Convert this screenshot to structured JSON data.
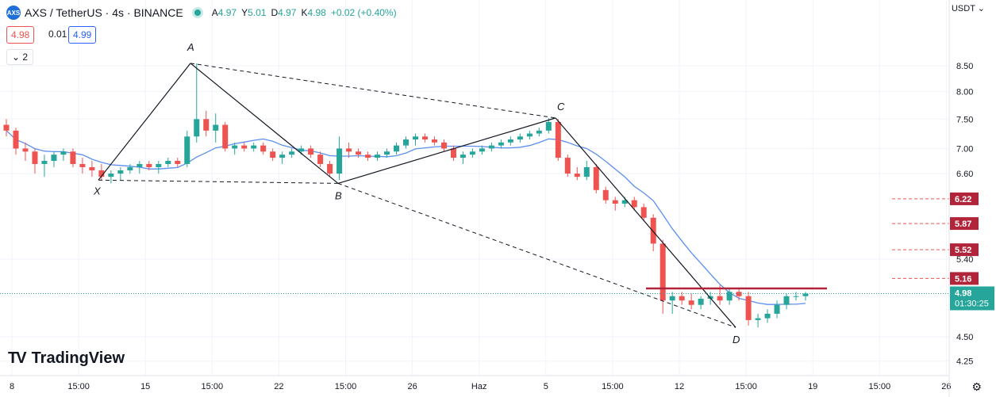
{
  "header": {
    "logo_text": "AXS",
    "symbol": "AXS / TetherUS · 4s · BINANCE",
    "ohlc": [
      {
        "k": "A",
        "v": "4.97"
      },
      {
        "k": "Y",
        "v": "5.01"
      },
      {
        "k": "D",
        "v": "4.97"
      },
      {
        "k": "K",
        "v": "4.98"
      }
    ],
    "change": "+0.02 (+0.40%)"
  },
  "trade": {
    "ask": "4.98",
    "spread": "0.01",
    "bid": "4.99"
  },
  "indicator_toggle": "⌄ 2",
  "currency": "USDT ⌄",
  "branding": {
    "mark": "TV",
    "text": "TradingView"
  },
  "colors": {
    "up": "#26a69a",
    "down": "#ef5350",
    "ma": "#5b8ff0",
    "pattern": "#131722",
    "resistance": "#b2243a",
    "axis_bg": "#ffffff"
  },
  "chart_data": {
    "type": "candlestick",
    "y_scale": "log",
    "price_ticks": [
      "8.50",
      "8.00",
      "7.50",
      "7.00",
      "6.60",
      "5.40",
      "4.50",
      "4.25"
    ],
    "time_ticks": [
      "8",
      "15:00",
      "15",
      "15:00",
      "22",
      "15:00",
      "26",
      "Haz",
      "5",
      "15:00",
      "12",
      "15:00",
      "19",
      "15:00",
      "26"
    ],
    "pattern_points": [
      {
        "label": "X",
        "date": "May 11",
        "price": 6.5
      },
      {
        "label": "A",
        "date": "May 14",
        "price": 8.55
      },
      {
        "label": "B",
        "date": "May 24",
        "price": 6.45
      },
      {
        "label": "C",
        "date": "Jun 5",
        "price": 7.52
      },
      {
        "label": "D",
        "date": "Jun 14",
        "price": 4.6
      }
    ],
    "target_levels": [
      {
        "label": "6.22",
        "price": 6.22
      },
      {
        "label": "5.87",
        "price": 5.87
      },
      {
        "label": "5.52",
        "price": 5.52
      },
      {
        "label": "5.16",
        "price": 5.16
      }
    ],
    "resistance_level": 5.04,
    "last_price": {
      "value": "4.98",
      "countdown": "01:30:25"
    },
    "candles_ohlc_approx": [
      [
        7.4,
        7.5,
        7.2,
        7.3
      ],
      [
        7.3,
        7.35,
        6.9,
        7.0
      ],
      [
        7.0,
        7.1,
        6.8,
        6.95
      ],
      [
        6.95,
        7.0,
        6.6,
        6.75
      ],
      [
        6.75,
        6.9,
        6.55,
        6.8
      ],
      [
        6.8,
        6.95,
        6.7,
        6.9
      ],
      [
        6.9,
        7.0,
        6.8,
        6.95
      ],
      [
        6.95,
        7.0,
        6.7,
        6.75
      ],
      [
        6.75,
        6.85,
        6.6,
        6.7
      ],
      [
        6.7,
        6.8,
        6.55,
        6.65
      ],
      [
        6.65,
        6.75,
        6.5,
        6.55
      ],
      [
        6.55,
        6.65,
        6.45,
        6.6
      ],
      [
        6.6,
        6.7,
        6.5,
        6.65
      ],
      [
        6.65,
        6.75,
        6.6,
        6.7
      ],
      [
        6.7,
        6.8,
        6.6,
        6.75
      ],
      [
        6.75,
        6.8,
        6.65,
        6.7
      ],
      [
        6.7,
        6.8,
        6.6,
        6.75
      ],
      [
        6.75,
        6.85,
        6.7,
        6.8
      ],
      [
        6.8,
        6.85,
        6.7,
        6.75
      ],
      [
        6.75,
        7.3,
        6.7,
        7.2
      ],
      [
        7.2,
        8.55,
        7.1,
        7.5
      ],
      [
        7.5,
        7.65,
        7.2,
        7.3
      ],
      [
        7.3,
        7.6,
        7.1,
        7.4
      ],
      [
        7.4,
        7.45,
        6.95,
        7.0
      ],
      [
        7.0,
        7.1,
        6.9,
        7.05
      ],
      [
        7.05,
        7.1,
        6.95,
        7.0
      ],
      [
        7.0,
        7.1,
        6.95,
        7.05
      ],
      [
        7.05,
        7.1,
        6.9,
        6.95
      ],
      [
        6.95,
        7.0,
        6.8,
        6.85
      ],
      [
        6.85,
        6.95,
        6.75,
        6.9
      ],
      [
        6.9,
        7.0,
        6.85,
        6.95
      ],
      [
        6.95,
        7.05,
        6.9,
        7.0
      ],
      [
        7.0,
        7.05,
        6.85,
        6.9
      ],
      [
        6.9,
        6.95,
        6.7,
        6.75
      ],
      [
        6.75,
        6.8,
        6.55,
        6.6
      ],
      [
        6.6,
        7.2,
        6.5,
        7.0
      ],
      [
        7.0,
        7.1,
        6.85,
        6.95
      ],
      [
        6.95,
        7.0,
        6.85,
        6.9
      ],
      [
        6.9,
        6.95,
        6.8,
        6.85
      ],
      [
        6.85,
        6.95,
        6.8,
        6.9
      ],
      [
        6.9,
        7.0,
        6.85,
        6.95
      ],
      [
        6.95,
        7.1,
        6.9,
        7.05
      ],
      [
        7.05,
        7.2,
        7.0,
        7.15
      ],
      [
        7.15,
        7.25,
        7.05,
        7.2
      ],
      [
        7.2,
        7.25,
        7.1,
        7.15
      ],
      [
        7.15,
        7.2,
        7.05,
        7.1
      ],
      [
        7.1,
        7.15,
        6.95,
        7.0
      ],
      [
        7.0,
        7.05,
        6.8,
        6.85
      ],
      [
        6.85,
        6.95,
        6.75,
        6.9
      ],
      [
        6.9,
        7.0,
        6.85,
        6.95
      ],
      [
        6.95,
        7.05,
        6.9,
        7.0
      ],
      [
        7.0,
        7.1,
        6.95,
        7.05
      ],
      [
        7.05,
        7.15,
        7.0,
        7.1
      ],
      [
        7.1,
        7.2,
        7.05,
        7.15
      ],
      [
        7.15,
        7.25,
        7.1,
        7.2
      ],
      [
        7.2,
        7.3,
        7.15,
        7.25
      ],
      [
        7.25,
        7.35,
        7.2,
        7.3
      ],
      [
        7.3,
        7.52,
        7.25,
        7.45
      ],
      [
        7.45,
        7.5,
        6.8,
        6.85
      ],
      [
        6.85,
        6.9,
        6.55,
        6.6
      ],
      [
        6.6,
        6.7,
        6.5,
        6.55
      ],
      [
        6.55,
        6.8,
        6.5,
        6.7
      ],
      [
        6.7,
        6.75,
        6.3,
        6.35
      ],
      [
        6.35,
        6.4,
        6.15,
        6.2
      ],
      [
        6.2,
        6.25,
        6.05,
        6.15
      ],
      [
        6.15,
        6.25,
        6.1,
        6.2
      ],
      [
        6.2,
        6.25,
        6.05,
        6.1
      ],
      [
        6.1,
        6.15,
        5.9,
        5.95
      ],
      [
        5.95,
        6.0,
        5.5,
        5.6
      ],
      [
        5.6,
        5.65,
        4.75,
        4.9
      ],
      [
        4.9,
        5.0,
        4.75,
        4.95
      ],
      [
        4.95,
        5.0,
        4.85,
        4.9
      ],
      [
        4.9,
        4.98,
        4.8,
        4.85
      ],
      [
        4.85,
        4.95,
        4.8,
        4.92
      ],
      [
        4.92,
        5.0,
        4.85,
        4.95
      ],
      [
        4.95,
        5.08,
        4.85,
        4.9
      ],
      [
        4.9,
        5.05,
        4.85,
        5.0
      ],
      [
        5.0,
        5.05,
        4.9,
        4.95
      ],
      [
        4.95,
        5.0,
        4.62,
        4.68
      ],
      [
        4.68,
        4.75,
        4.6,
        4.7
      ],
      [
        4.7,
        4.8,
        4.65,
        4.75
      ],
      [
        4.75,
        4.9,
        4.7,
        4.85
      ],
      [
        4.85,
        4.98,
        4.8,
        4.95
      ],
      [
        4.95,
        5.0,
        4.9,
        4.95
      ],
      [
        4.95,
        5.0,
        4.9,
        4.98
      ]
    ]
  }
}
